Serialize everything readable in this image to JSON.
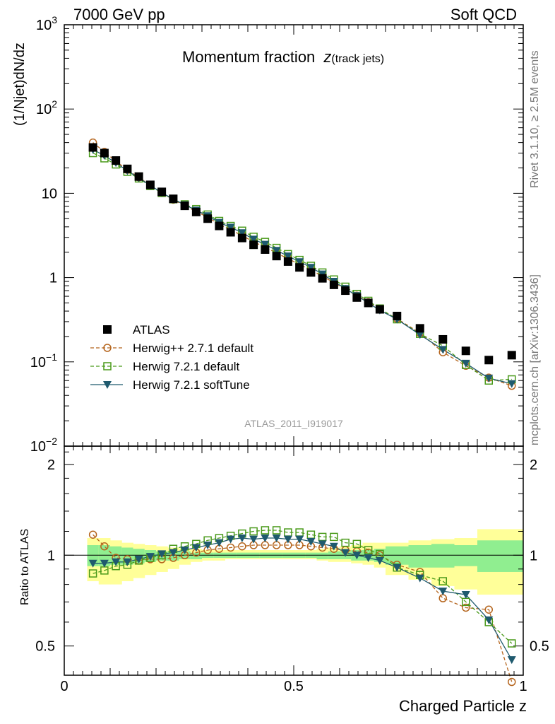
{
  "header": {
    "left": "7000 GeV pp",
    "right": "Soft QCD"
  },
  "side_text": {
    "rivet": "Rivet 3.1.10, ≥ 2.5M events",
    "mcplots": "mcplots.cern.ch [arXiv:1306.3436]"
  },
  "top_panel": {
    "ylabel": "(1/Njet)dN/dz",
    "title_main": "Momentum fraction",
    "title_var": "z",
    "title_sub": "(track jets)",
    "watermark": "ATLAS_2011_I919017",
    "ytick_labels": [
      {
        "base": "10",
        "exp": "3"
      },
      {
        "base": "10",
        "exp": "2"
      },
      {
        "base": "10",
        "exp": ""
      },
      {
        "base": "1",
        "exp": ""
      },
      {
        "base": "10",
        "exp": "−1"
      },
      {
        "base": "10",
        "exp": "−2"
      }
    ]
  },
  "bottom_panel": {
    "ylabel": "Ratio to ATLAS",
    "ytick_labels": [
      "2",
      "1",
      "0.5"
    ]
  },
  "xaxis": {
    "label": "Charged Particle z",
    "tick_labels": [
      "0",
      "0.5",
      "1"
    ]
  },
  "legend": [
    {
      "label": "ATLAS",
      "color": "#000000",
      "marker": "filled-square",
      "line": "none"
    },
    {
      "label": "Herwig++ 2.7.1 default",
      "color": "#b5651d",
      "marker": "open-circle",
      "line": "dashed"
    },
    {
      "label": "Herwig 7.2.1 default",
      "color": "#4a9a1a",
      "marker": "open-square",
      "line": "dashed"
    },
    {
      "label": "Herwig 7.2.1 softTune",
      "color": "#1f5a6e",
      "marker": "filled-triangle-down",
      "line": "solid"
    }
  ],
  "chart_data": {
    "type": "scatter",
    "x": [
      0.0625,
      0.0875,
      0.1125,
      0.1375,
      0.1625,
      0.1875,
      0.2125,
      0.2375,
      0.2625,
      0.2875,
      0.3125,
      0.3375,
      0.3625,
      0.3875,
      0.4125,
      0.4375,
      0.4625,
      0.4875,
      0.5125,
      0.5375,
      0.5625,
      0.5875,
      0.6125,
      0.6375,
      0.6625,
      0.6875,
      0.725,
      0.775,
      0.825,
      0.875,
      0.925,
      0.975
    ],
    "xlim": [
      0,
      1
    ],
    "top_ylim": [
      0.01,
      1000
    ],
    "top_yscale": "log",
    "ratio_ylim": [
      0.4,
      2.3
    ],
    "ratio_yscale": "log",
    "series": [
      {
        "name": "ATLAS",
        "values": [
          35,
          30,
          24.5,
          19.5,
          15.8,
          12.6,
          10.4,
          8.6,
          7.1,
          6.0,
          5.0,
          4.1,
          3.45,
          2.95,
          2.45,
          2.15,
          1.8,
          1.55,
          1.32,
          1.15,
          0.98,
          0.82,
          0.7,
          0.58,
          0.5,
          0.42,
          0.35,
          0.25,
          0.185,
          0.135,
          0.105,
          0.12
        ]
      },
      {
        "name": "Herwig++ 2.7.1 default",
        "values": [
          40,
          31,
          24,
          19,
          15.5,
          12.4,
          10.1,
          8.4,
          7.1,
          6.1,
          5.2,
          4.3,
          3.7,
          3.15,
          2.65,
          2.3,
          1.95,
          1.68,
          1.43,
          1.23,
          1.04,
          0.87,
          0.73,
          0.61,
          0.51,
          0.42,
          0.325,
          0.22,
          0.13,
          0.09,
          0.065,
          0.052
        ]
      },
      {
        "name": "Herwig 7.2.1 default",
        "values": [
          30,
          26,
          22,
          18,
          15,
          12.2,
          10.1,
          8.5,
          7.4,
          6.5,
          5.6,
          4.7,
          4.1,
          3.6,
          3.05,
          2.65,
          2.25,
          1.9,
          1.62,
          1.38,
          1.15,
          0.95,
          0.78,
          0.64,
          0.53,
          0.43,
          0.32,
          0.215,
          0.155,
          0.092,
          0.06,
          0.062
        ]
      },
      {
        "name": "Herwig 7.2.1 softTune",
        "values": [
          33,
          28,
          23,
          18.5,
          15.2,
          12.4,
          10.2,
          8.5,
          7.3,
          6.3,
          5.4,
          4.5,
          3.95,
          3.4,
          2.85,
          2.48,
          2.1,
          1.8,
          1.54,
          1.32,
          1.1,
          0.9,
          0.74,
          0.61,
          0.5,
          0.41,
          0.32,
          0.21,
          0.14,
          0.096,
          0.064,
          0.055
        ]
      }
    ],
    "ratio_series": [
      {
        "name": "Herwig++ 2.7.1 default",
        "values": [
          1.17,
          1.07,
          0.98,
          0.97,
          0.96,
          0.97,
          0.97,
          0.98,
          1.0,
          1.02,
          1.04,
          1.05,
          1.06,
          1.07,
          1.08,
          1.08,
          1.08,
          1.08,
          1.08,
          1.07,
          1.06,
          1.05,
          1.04,
          1.03,
          1.02,
          1.0,
          0.93,
          0.88,
          0.72,
          0.67,
          0.66,
          0.38
        ]
      },
      {
        "name": "Herwig 7.2.1 default",
        "values": [
          0.87,
          0.89,
          0.92,
          0.93,
          0.96,
          0.98,
          1.0,
          1.05,
          1.07,
          1.09,
          1.12,
          1.14,
          1.16,
          1.18,
          1.2,
          1.21,
          1.21,
          1.19,
          1.19,
          1.17,
          1.15,
          1.15,
          1.1,
          1.09,
          1.04,
          1.01,
          0.91,
          0.86,
          0.82,
          0.7,
          0.6,
          0.51
        ]
      },
      {
        "name": "Herwig 7.2.1 softTune",
        "values": [
          0.94,
          0.94,
          0.95,
          0.95,
          0.97,
          0.99,
          1.01,
          1.02,
          1.04,
          1.06,
          1.08,
          1.1,
          1.13,
          1.14,
          1.13,
          1.14,
          1.14,
          1.13,
          1.13,
          1.11,
          1.09,
          1.07,
          1.02,
          1.0,
          0.98,
          0.96,
          0.91,
          0.84,
          0.76,
          0.74,
          0.61,
          0.45
        ]
      }
    ],
    "ratio_bands": {
      "x_edges": [
        0.05,
        0.075,
        0.1,
        0.125,
        0.15,
        0.175,
        0.2,
        0.225,
        0.25,
        0.275,
        0.3,
        0.325,
        0.35,
        0.375,
        0.4,
        0.425,
        0.45,
        0.475,
        0.5,
        0.525,
        0.55,
        0.575,
        0.6,
        0.625,
        0.65,
        0.675,
        0.7,
        0.75,
        0.8,
        0.85,
        0.9,
        0.95,
        1.0
      ],
      "inner_lo": [
        0.92,
        0.92,
        0.93,
        0.93,
        0.94,
        0.95,
        0.96,
        0.96,
        0.97,
        0.97,
        0.98,
        0.98,
        0.98,
        0.98,
        0.98,
        0.98,
        0.98,
        0.98,
        0.98,
        0.98,
        0.97,
        0.97,
        0.97,
        0.96,
        0.96,
        0.95,
        0.93,
        0.91,
        0.91,
        0.92,
        0.88,
        0.88
      ],
      "inner_hi": [
        1.08,
        1.08,
        1.07,
        1.06,
        1.05,
        1.04,
        1.03,
        1.03,
        1.03,
        1.02,
        1.02,
        1.02,
        1.02,
        1.02,
        1.02,
        1.02,
        1.02,
        1.02,
        1.02,
        1.02,
        1.02,
        1.03,
        1.03,
        1.04,
        1.04,
        1.05,
        1.07,
        1.08,
        1.09,
        1.08,
        1.12,
        1.12
      ],
      "outer_lo": [
        0.82,
        0.8,
        0.8,
        0.82,
        0.84,
        0.86,
        0.88,
        0.9,
        0.93,
        0.95,
        0.96,
        0.96,
        0.97,
        0.97,
        0.97,
        0.97,
        0.97,
        0.97,
        0.97,
        0.97,
        0.96,
        0.95,
        0.95,
        0.94,
        0.93,
        0.91,
        0.86,
        0.83,
        0.79,
        0.77,
        0.74,
        0.74
      ],
      "outer_hi": [
        1.14,
        1.14,
        1.12,
        1.1,
        1.09,
        1.08,
        1.07,
        1.06,
        1.05,
        1.05,
        1.04,
        1.04,
        1.04,
        1.04,
        1.04,
        1.04,
        1.04,
        1.04,
        1.04,
        1.04,
        1.05,
        1.06,
        1.07,
        1.08,
        1.1,
        1.1,
        1.1,
        1.12,
        1.13,
        1.14,
        1.22,
        1.22
      ],
      "inner_color": "#90ee90",
      "outer_color": "#ffff99"
    },
    "ratio_ref_line": 1
  }
}
